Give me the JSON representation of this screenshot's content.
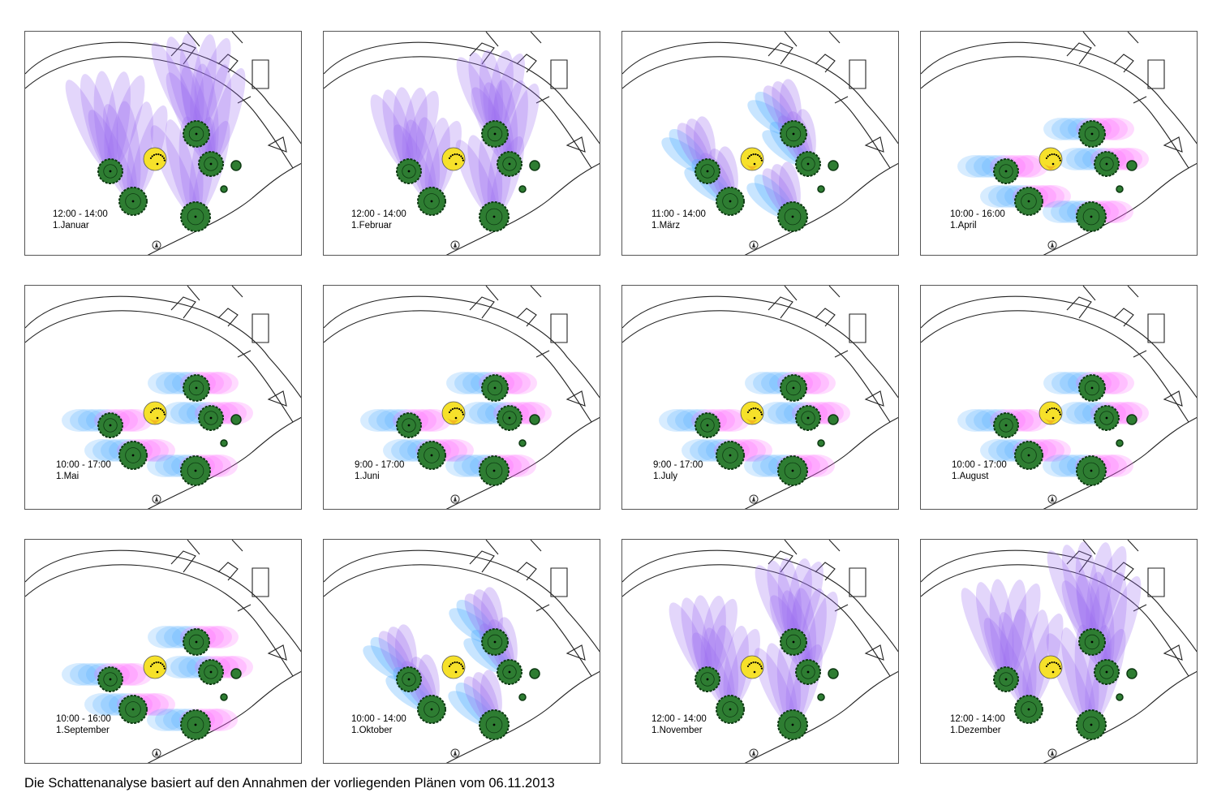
{
  "caption": "Die Schattenanalyse basiert auf den Annahmen der vorliegenden Plänen vom 06.11.2013",
  "colors": {
    "tree_fill": "#2e7d32",
    "tree_stroke": "#0d3a12",
    "sun_fill": "#f6e12a",
    "sun_fill_warm": "#f0a020",
    "shadow_winter": "#9b6cf0",
    "shadow_summer_a": "#4aa8ff",
    "shadow_summer_b": "#ff5cff",
    "map_lines": "#222222"
  },
  "panels": [
    {
      "time": "12:00 - 14:00",
      "date": "1.Januar",
      "shadow_direction": "north",
      "shadow_length": "very long",
      "season": "winter"
    },
    {
      "time": "12:00 - 14:00",
      "date": "1.Februar",
      "shadow_direction": "north",
      "shadow_length": "long",
      "season": "winter"
    },
    {
      "time": "11:00 - 14:00",
      "date": "1.März",
      "shadow_direction": "northwest",
      "shadow_length": "medium",
      "season": "spring"
    },
    {
      "time": "10:00 - 16:00",
      "date": "1.April",
      "shadow_direction": "west-east",
      "shadow_length": "short",
      "season": "spring"
    },
    {
      "time": "10:00 - 17:00",
      "date": "1.Mai",
      "shadow_direction": "west-east",
      "shadow_length": "short",
      "season": "summer"
    },
    {
      "time": "9:00 - 17:00",
      "date": "1.Juni",
      "shadow_direction": "west-east",
      "shadow_length": "short",
      "season": "summer"
    },
    {
      "time": "9:00 - 17:00",
      "date": "1.July",
      "shadow_direction": "west-east",
      "shadow_length": "short",
      "season": "summer"
    },
    {
      "time": "10:00 - 17:00",
      "date": "1.August",
      "shadow_direction": "west-east",
      "shadow_length": "short",
      "season": "summer"
    },
    {
      "time": "10:00 - 16:00",
      "date": "1.September",
      "shadow_direction": "west-east",
      "shadow_length": "short",
      "season": "autumn"
    },
    {
      "time": "10:00 - 14:00",
      "date": "1.Oktober",
      "shadow_direction": "northwest",
      "shadow_length": "medium",
      "season": "autumn"
    },
    {
      "time": "12:00 - 14:00",
      "date": "1.November",
      "shadow_direction": "north",
      "shadow_length": "long",
      "season": "winter"
    },
    {
      "time": "12:00 - 14:00",
      "date": "1.Dezember",
      "shadow_direction": "north",
      "shadow_length": "very long",
      "season": "winter"
    }
  ]
}
